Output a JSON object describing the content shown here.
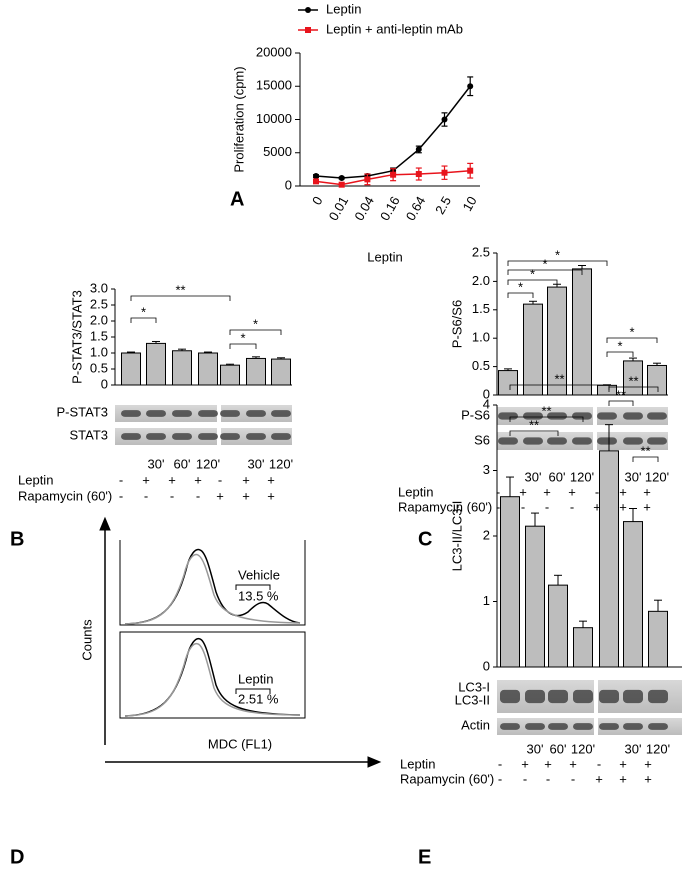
{
  "chart_data": [
    {
      "type": "line",
      "panel": "A",
      "x_label": "Leptin",
      "y_label": "Proliferation (cpm)",
      "categories": [
        "0",
        "0.01",
        "0.04",
        "0.16",
        "0.64",
        "2.5",
        "10"
      ],
      "ylim": [
        0,
        20000
      ],
      "yticks": [
        0,
        5000,
        10000,
        15000,
        20000
      ],
      "series": [
        {
          "name": "Leptin",
          "color": "#000000",
          "marker": "circle",
          "values": [
            1500,
            1200,
            1500,
            2300,
            5500,
            10000,
            15000
          ],
          "errors": [
            200,
            150,
            300,
            400,
            500,
            1000,
            1400
          ]
        },
        {
          "name": "Leptin + anti-leptin mAb",
          "color": "#e8141c",
          "marker": "square",
          "values": [
            700,
            200,
            1000,
            1700,
            1800,
            2000,
            2300
          ],
          "errors": [
            300,
            200,
            800,
            900,
            900,
            1000,
            1100
          ]
        }
      ]
    },
    {
      "type": "bar",
      "panel": "B",
      "y_label": "P-STAT3/STAT3",
      "color": "#bdbdbd",
      "values": [
        1.0,
        1.3,
        1.07,
        1.0,
        0.62,
        0.83,
        0.81
      ],
      "errors": [
        0.03,
        0.06,
        0.05,
        0.03,
        0.03,
        0.05,
        0.04
      ],
      "ylim": [
        0,
        3
      ],
      "yticks": [
        0,
        0.5,
        {
          "value": 1,
          "label": "1.0"
        },
        1.5,
        {
          "value": 2,
          "label": "2.0"
        },
        2.5,
        {
          "value": 3,
          "label": "3.0"
        }
      ],
      "brackets": [
        "*",
        "**",
        "*",
        "*"
      ],
      "blot_rows": [
        "P-STAT3",
        "STAT3"
      ],
      "times": [
        null,
        "30'",
        "60'",
        "120'",
        null,
        "30'",
        "120'"
      ],
      "treatments": [
        {
          "name": "Leptin",
          "values": [
            "-",
            "+",
            "+",
            "+",
            "-",
            "+",
            "+"
          ]
        },
        {
          "name": "Rapamycin (60')",
          "values": [
            "-",
            "-",
            "-",
            "-",
            "+",
            "+",
            "+"
          ]
        }
      ]
    },
    {
      "type": "bar",
      "panel": "C",
      "y_label": "P-S6/S6",
      "color": "#bdbdbd",
      "values": [
        0.43,
        1.6,
        1.9,
        2.22,
        0.17,
        0.6,
        0.52
      ],
      "errors": [
        0.03,
        0.05,
        0.05,
        0.06,
        0.01,
        0.05,
        0.04
      ],
      "ylim": [
        0,
        2.5
      ],
      "yticks": [
        0,
        0.5,
        {
          "value": 1,
          "label": "1.0"
        },
        1.5,
        {
          "value": 2,
          "label": "2.0"
        },
        2.5
      ],
      "brackets": [
        "*",
        "*",
        "*",
        "*",
        "*",
        "*"
      ],
      "blot_rows": [
        "P-S6",
        "S6"
      ],
      "times": [
        null,
        "30'",
        "60'",
        "120'",
        null,
        "30'",
        "120'"
      ],
      "treatments": [
        {
          "name": "Leptin",
          "values": [
            "-",
            "+",
            "+",
            "+",
            "-",
            "+",
            "+"
          ]
        },
        {
          "name": "Rapamycin (60')",
          "values": [
            "-",
            "-",
            "-",
            "-",
            "+",
            "+",
            "+"
          ]
        }
      ]
    },
    {
      "type": "bar",
      "panel": "E",
      "y_label": "LC3-II/LC3-I",
      "color": "#bdbdbd",
      "values": [
        2.6,
        2.15,
        1.25,
        0.6,
        3.3,
        2.22,
        0.85
      ],
      "errors": [
        0.3,
        0.2,
        0.15,
        0.1,
        0.4,
        0.2,
        0.17
      ],
      "ylim": [
        0,
        4
      ],
      "yticks": [
        0,
        1,
        2,
        3,
        4
      ],
      "brackets": [
        "**",
        "**",
        "**",
        "**",
        "**",
        "**"
      ],
      "blot_rows": [
        "LC3-I",
        "LC3-II",
        "Actin"
      ],
      "times": [
        null,
        "30'",
        "60'",
        "120'",
        null,
        "30'",
        "120'"
      ],
      "treatments": [
        {
          "name": "Leptin",
          "values": [
            "-",
            "+",
            "+",
            "+",
            "-",
            "+",
            "+"
          ]
        },
        {
          "name": "Rapamycin (60')",
          "values": [
            "-",
            "-",
            "-",
            "-",
            "+",
            "+",
            "+"
          ]
        }
      ]
    }
  ],
  "flow_panel": {
    "panel": "D",
    "y_label": "Counts",
    "x_label": "MDC (FL1)",
    "top": {
      "label": "Vehicle",
      "percent": "13.5 %"
    },
    "bottom": {
      "label": "Leptin",
      "percent": "2.51 %"
    }
  }
}
